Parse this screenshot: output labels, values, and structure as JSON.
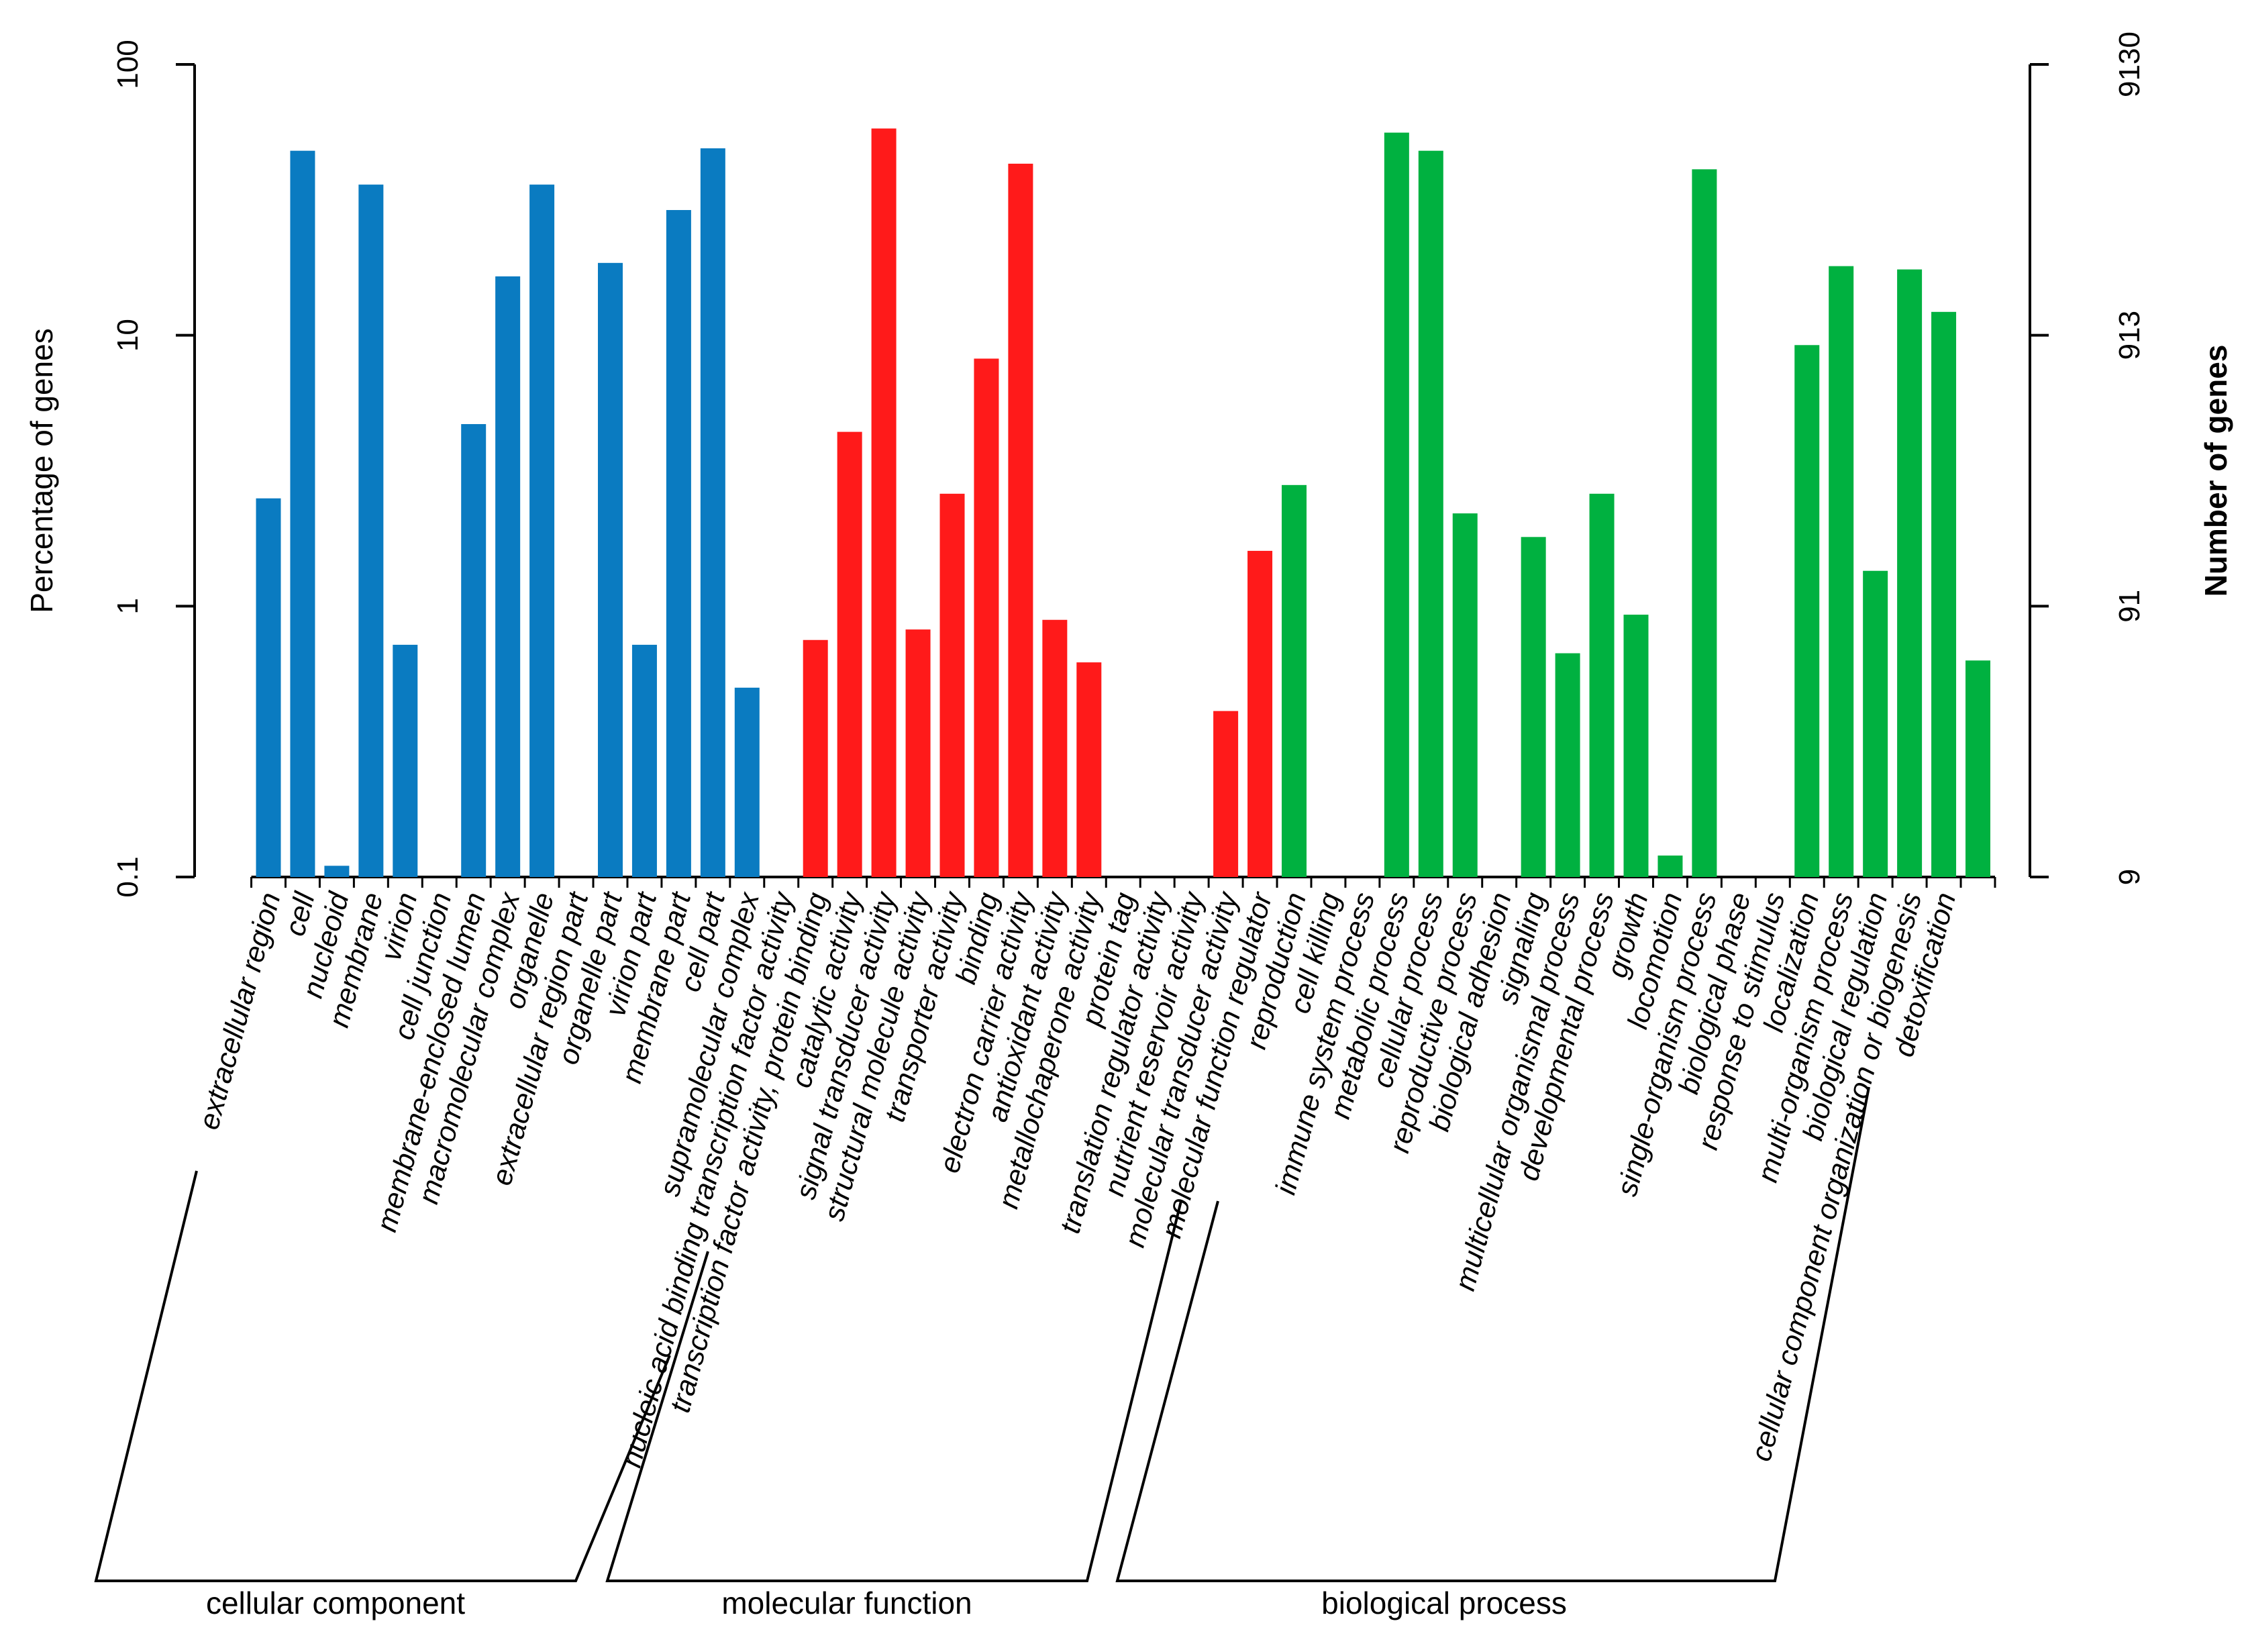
{
  "chart_data": {
    "type": "bar",
    "y_scale": "log",
    "ylabel": "Percentage of genes",
    "y2label": "Number of genes",
    "ylim": [
      0.1,
      100
    ],
    "yticks": [
      0.1,
      1,
      10,
      100
    ],
    "ytick_labels": [
      "0.1",
      "1",
      "10",
      "100"
    ],
    "y2ticks": [
      9,
      91,
      913,
      9130
    ],
    "y2tick_labels": [
      "9",
      "91",
      "913",
      "9130"
    ],
    "colors": {
      "cellular component": "#0a7bc1",
      "molecular function": "#ff1a1a",
      "biological process": "#00b140"
    },
    "groups": [
      {
        "name": "cellular component",
        "first": 0,
        "last": 15
      },
      {
        "name": "molecular function",
        "first": 16,
        "last": 29
      },
      {
        "name": "biological process",
        "first": 30,
        "last": 49
      }
    ],
    "categories": [
      {
        "label": "extracellular region",
        "group": "cellular component",
        "value": 2.5
      },
      {
        "label": "cell",
        "group": "cellular component",
        "value": 48
      },
      {
        "label": "nucleoid",
        "group": "cellular component",
        "value": 0.11
      },
      {
        "label": "membrane",
        "group": "cellular component",
        "value": 36
      },
      {
        "label": "virion",
        "group": "cellular component",
        "value": 0.72
      },
      {
        "label": "cell junction",
        "group": "cellular component",
        "value": 0
      },
      {
        "label": "membrane-enclosed lumen",
        "group": "cellular component",
        "value": 4.7
      },
      {
        "label": "macromolecular complex",
        "group": "cellular component",
        "value": 16.5
      },
      {
        "label": "organelle",
        "group": "cellular component",
        "value": 36
      },
      {
        "label": "extracellular region part",
        "group": "cellular component",
        "value": 0
      },
      {
        "label": "organelle part",
        "group": "cellular component",
        "value": 18.5
      },
      {
        "label": "virion part",
        "group": "cellular component",
        "value": 0.72
      },
      {
        "label": "membrane part",
        "group": "cellular component",
        "value": 29
      },
      {
        "label": "cell part",
        "group": "cellular component",
        "value": 49
      },
      {
        "label": "supramolecular complex",
        "group": "cellular component",
        "value": 0.5
      },
      {
        "label": "nucleic acid binding transcription factor activity",
        "group": "cellular component",
        "value": 0
      },
      {
        "label": "transcription factor activity, protein binding",
        "group": "molecular function",
        "value": 0.75
      },
      {
        "label": "catalytic activity",
        "group": "molecular function",
        "value": 4.4
      },
      {
        "label": "signal transducer activity",
        "group": "molecular function",
        "value": 58
      },
      {
        "label": "structural molecule activity",
        "group": "molecular function",
        "value": 0.82
      },
      {
        "label": "transporter activity",
        "group": "molecular function",
        "value": 2.6
      },
      {
        "label": "binding",
        "group": "molecular function",
        "value": 8.2
      },
      {
        "label": "electron carrier activity",
        "group": "molecular function",
        "value": 43
      },
      {
        "label": "antioxidant activity",
        "group": "molecular function",
        "value": 0.89
      },
      {
        "label": "metallochaperone activity",
        "group": "molecular function",
        "value": 0.62
      },
      {
        "label": "protein tag",
        "group": "molecular function",
        "value": 0
      },
      {
        "label": "translation regulator activity",
        "group": "molecular function",
        "value": 0
      },
      {
        "label": "nutrient reservoir activity",
        "group": "molecular function",
        "value": 0
      },
      {
        "label": "molecular transducer activity",
        "group": "molecular function",
        "value": 0.41
      },
      {
        "label": "molecular function regulator",
        "group": "molecular function",
        "value": 1.6
      },
      {
        "label": "reproduction",
        "group": "biological process",
        "value": 2.8
      },
      {
        "label": "cell killing",
        "group": "biological process",
        "value": 0
      },
      {
        "label": "immune system process",
        "group": "biological process",
        "value": 0
      },
      {
        "label": "metabolic process",
        "group": "biological process",
        "value": 56
      },
      {
        "label": "cellular process",
        "group": "biological process",
        "value": 48
      },
      {
        "label": "reproductive process",
        "group": "biological process",
        "value": 2.2
      },
      {
        "label": "biological adhesion",
        "group": "biological process",
        "value": 0
      },
      {
        "label": "signaling",
        "group": "biological process",
        "value": 1.8
      },
      {
        "label": "multicellular organismal process",
        "group": "biological process",
        "value": 0.67
      },
      {
        "label": "developmental process",
        "group": "biological process",
        "value": 2.6
      },
      {
        "label": "growth",
        "group": "biological process",
        "value": 0.93
      },
      {
        "label": "locomotion",
        "group": "biological process",
        "value": 0.12
      },
      {
        "label": "single-organism process",
        "group": "biological process",
        "value": 41
      },
      {
        "label": "biological phase",
        "group": "biological process",
        "value": 0
      },
      {
        "label": "response to stimulus",
        "group": "biological process",
        "value": 0
      },
      {
        "label": "localization",
        "group": "biological process",
        "value": 9.2
      },
      {
        "label": "multi-organism process",
        "group": "biological process",
        "value": 18
      },
      {
        "label": "biological regulation",
        "group": "biological process",
        "value": 1.35
      },
      {
        "label": "cellular component organization or biogenesis",
        "group": "biological process",
        "value": 17.5
      },
      {
        "label": "detoxification",
        "group": "biological process",
        "value": 12.2
      }
    ],
    "extra_bar": {
      "group": "biological process",
      "value": 0.63
    }
  }
}
